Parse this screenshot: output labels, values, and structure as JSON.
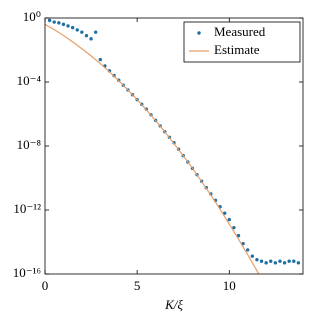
{
  "chart_data": {
    "type": "scatter-line",
    "xlabel": "K/ξ",
    "xlim": [
      0,
      14
    ],
    "xticks": [
      0,
      5,
      10
    ],
    "ylim": [
      1e-16,
      1
    ],
    "ylog": true,
    "yticks": [
      {
        "value": 1,
        "label": "10⁰"
      },
      {
        "value": 0.0001,
        "label": "10⁻⁴"
      },
      {
        "value": 1e-08,
        "label": "10⁻⁸"
      },
      {
        "value": 1e-12,
        "label": "10⁻¹²"
      },
      {
        "value": 1e-16,
        "label": "10⁻¹⁶"
      }
    ],
    "legend": "upper right",
    "series": [
      {
        "name": "Measured",
        "kind": "markers",
        "color": "#1f6fa3",
        "x": [
          0.25,
          0.5,
          0.75,
          1,
          1.25,
          1.5,
          1.75,
          2,
          2.25,
          2.5,
          2.75,
          3,
          3.25,
          3.5,
          3.75,
          4,
          4.25,
          4.5,
          4.75,
          5,
          5.25,
          5.5,
          5.75,
          6,
          6.25,
          6.5,
          6.75,
          7,
          7.25,
          7.5,
          7.75,
          8,
          8.25,
          8.5,
          8.75,
          9,
          9.25,
          9.5,
          9.75,
          10,
          10.25,
          10.5,
          10.75,
          11,
          11.25,
          11.5,
          11.75,
          12,
          12.25,
          12.5,
          12.75,
          13,
          13.25,
          13.5,
          13.75
        ],
        "values": [
          0.71,
          0.56,
          0.5,
          0.4,
          0.32,
          0.25,
          0.18,
          0.13,
          0.079,
          0.05,
          0.13,
          0.0025,
          0.001,
          0.0005,
          0.00025,
          0.00013,
          6.3e-05,
          3.2e-05,
          1.6e-05,
          7.9e-06,
          4e-06,
          2e-06,
          8.9e-07,
          4e-07,
          1.8e-07,
          7.9e-08,
          3.5e-08,
          1.6e-08,
          6.3e-09,
          2.5e-09,
          1e-09,
          4e-10,
          1.6e-10,
          6.3e-11,
          2.5e-11,
          1e-11,
          4e-12,
          1.6e-12,
          6.3e-13,
          2.5e-13,
          7.9e-14,
          2.5e-14,
          7.9e-15,
          3.2e-15,
          1.3e-15,
          7.9e-16,
          6.3e-16,
          5e-16,
          6.3e-16,
          5e-16,
          6.3e-16,
          5e-16,
          6.3e-16,
          6.3e-16,
          5e-16
        ]
      },
      {
        "name": "Estimate",
        "kind": "line",
        "color": "#e8a06a",
        "x": [
          0,
          0.5,
          1,
          1.5,
          2,
          2.5,
          3,
          3.5,
          4,
          4.5,
          5,
          5.5,
          6,
          6.5,
          7,
          7.5,
          8,
          8.5,
          9,
          9.5,
          10,
          10.5,
          11,
          11.5,
          11.6
        ],
        "values": [
          0.4,
          0.19,
          0.081,
          0.032,
          0.012,
          0.0043,
          0.0014,
          0.00043,
          0.00012,
          3.2e-05,
          7.9e-06,
          1.8e-06,
          3.9e-07,
          7.8e-08,
          1.4e-08,
          2.5e-09,
          4.1e-10,
          6e-11,
          8.5e-12,
          1.1e-12,
          1.3e-13,
          1.5e-14,
          1.6e-15,
          1.6e-16,
          1e-16
        ]
      }
    ]
  }
}
